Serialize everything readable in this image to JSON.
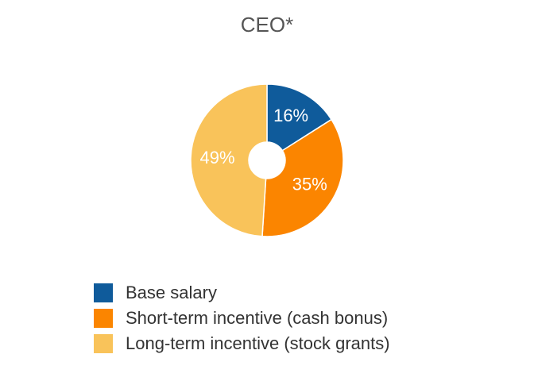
{
  "chart_data": {
    "type": "pie",
    "title": "CEO*",
    "categories": [
      "Base salary",
      "Short-term incentive (cash bonus)",
      "Long-term incentive (stock grants)"
    ],
    "values": [
      16,
      35,
      49
    ],
    "value_labels": [
      "16%",
      "35%",
      "49%"
    ],
    "colors": [
      "#0f5b9b",
      "#fb8500",
      "#f9c35a"
    ],
    "donut": true,
    "legend": "bottom"
  }
}
